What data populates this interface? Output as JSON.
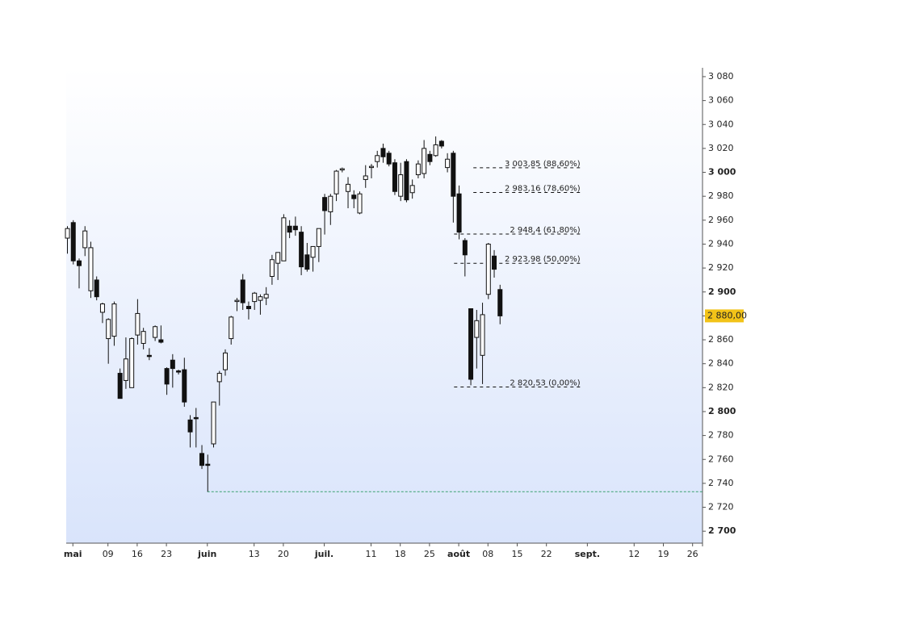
{
  "chart_data": {
    "type": "candlestick",
    "x": [
      0,
      1,
      2,
      3,
      4,
      5,
      6,
      7,
      8,
      9,
      10,
      11,
      12,
      13,
      14,
      15,
      16,
      17,
      18,
      19,
      20,
      21,
      22,
      23,
      24,
      25,
      26,
      27,
      28,
      29,
      30,
      31,
      32,
      33,
      34,
      35,
      36,
      37,
      38,
      39,
      40,
      41,
      42,
      43,
      44,
      45,
      46,
      47,
      48,
      49,
      50,
      51,
      52,
      53,
      54,
      55,
      56,
      57,
      58,
      59,
      60,
      61,
      62,
      63,
      64,
      65,
      66,
      67,
      68,
      69,
      70,
      71,
      72,
      73,
      74
    ],
    "open": [
      2945,
      2958,
      2926,
      2937,
      2901,
      2910,
      2883,
      2861,
      2863,
      2832,
      2826,
      2820,
      2864,
      2857,
      2847,
      2862,
      2860,
      2836,
      2843,
      2834,
      2835,
      2793,
      2795,
      2765,
      2756,
      2773,
      2825,
      2835,
      2861,
      2892,
      2910,
      2888,
      2892,
      2893,
      2895,
      2913,
      2924,
      2926,
      2955,
      2955,
      2950,
      2931,
      2929,
      2938,
      2979,
      2967,
      2982,
      3002,
      2984,
      2981,
      2966,
      2994,
      3004,
      3009,
      3020,
      3016,
      3008,
      2980,
      3009,
      2983,
      2998,
      2999,
      3015,
      3014,
      3026,
      3004,
      3016,
      2982,
      2943,
      2886,
      2862,
      2847,
      2898,
      2930,
      2902
    ],
    "high": [
      2955,
      2960,
      2928,
      2955,
      2942,
      2913,
      2891,
      2878,
      2892,
      2836,
      2862,
      2862,
      2894,
      2870,
      2853,
      2872,
      2872,
      2837,
      2848,
      2835,
      2845,
      2797,
      2803,
      2772,
      2764,
      2808,
      2834,
      2852,
      2880,
      2895,
      2915,
      2892,
      2900,
      2898,
      2904,
      2931,
      2933,
      2965,
      2960,
      2963,
      2955,
      2941,
      2938,
      2953,
      2982,
      2982,
      3002,
      3004,
      2996,
      2985,
      2984,
      3006,
      3007,
      3018,
      3024,
      3018,
      3011,
      3008,
      3011,
      2994,
      3010,
      3027,
      3018,
      3030,
      3027,
      3016,
      3018,
      2989,
      2945,
      2886,
      2885,
      2891,
      2941,
      2935,
      2906
    ],
    "low": [
      2932,
      2923,
      2903,
      2930,
      2895,
      2893,
      2874,
      2840,
      2855,
      2812,
      2819,
      2820,
      2856,
      2852,
      2843,
      2859,
      2857,
      2814,
      2820,
      2831,
      2804,
      2770,
      2770,
      2752,
      2733,
      2770,
      2805,
      2830,
      2856,
      2884,
      2885,
      2877,
      2885,
      2881,
      2889,
      2906,
      2910,
      2926,
      2945,
      2947,
      2914,
      2917,
      2917,
      2925,
      2948,
      2956,
      2976,
      3000,
      2970,
      2970,
      2965,
      2987,
      2995,
      3004,
      3008,
      3005,
      2981,
      2976,
      2975,
      2978,
      2995,
      2995,
      3006,
      3013,
      3020,
      3000,
      2958,
      2944,
      2913,
      2822,
      2836,
      2823,
      2894,
      2912,
      2873
    ],
    "close": [
      2953,
      2926,
      2922,
      2951,
      2937,
      2896,
      2890,
      2877,
      2890,
      2811,
      2844,
      2861,
      2882,
      2867,
      2846,
      2871,
      2858,
      2823,
      2836,
      2833,
      2808,
      2783,
      2794,
      2755,
      2755,
      2808,
      2832,
      2849,
      2879,
      2893,
      2891,
      2886,
      2899,
      2896,
      2898,
      2927,
      2933,
      2962,
      2950,
      2952,
      2921,
      2919,
      2938,
      2953,
      2968,
      2980,
      3001,
      3003,
      2990,
      2978,
      2982,
      2997,
      3005,
      3014,
      3013,
      3007,
      2984,
      2998,
      2977,
      2989,
      3007,
      3020,
      3009,
      3023,
      3022,
      3011,
      2980,
      2950,
      2931,
      2827,
      2876,
      2881,
      2940,
      2919,
      2880
    ],
    "up_color": "#ffffff",
    "down_color": "#111111",
    "xlim": [
      -0.14,
      108.7
    ],
    "xticks": [
      {
        "value": 1,
        "label": "mai"
      },
      {
        "value": 7,
        "label": "09"
      },
      {
        "value": 12,
        "label": "16"
      },
      {
        "value": 17,
        "label": "23"
      },
      {
        "value": 24,
        "label": "juin"
      },
      {
        "value": 32,
        "label": "13"
      },
      {
        "value": 37,
        "label": "20"
      },
      {
        "value": 44,
        "label": "juil."
      },
      {
        "value": 52,
        "label": "11"
      },
      {
        "value": 57,
        "label": "18"
      },
      {
        "value": 62,
        "label": "25"
      },
      {
        "value": 67,
        "label": "août"
      },
      {
        "value": 72,
        "label": "08"
      },
      {
        "value": 77,
        "label": "15"
      },
      {
        "value": 82,
        "label": "22"
      },
      {
        "value": 89,
        "label": "sept."
      },
      {
        "value": 97,
        "label": "12"
      },
      {
        "value": 102,
        "label": "19"
      },
      {
        "value": 107,
        "label": "26"
      }
    ],
    "ylim": [
      2690,
      3087.4
    ],
    "yticks": [
      {
        "value": 3080,
        "label": "3 080"
      },
      {
        "value": 3060,
        "label": "3 060"
      },
      {
        "value": 3040,
        "label": "3 040"
      },
      {
        "value": 3020,
        "label": "3 020"
      },
      {
        "value": 3000,
        "label": "3 000"
      },
      {
        "value": 2980,
        "label": "2 980"
      },
      {
        "value": 2960,
        "label": "2 960"
      },
      {
        "value": 2940,
        "label": "2 940"
      },
      {
        "value": 2920,
        "label": "2 920"
      },
      {
        "value": 2900,
        "label": "2 900"
      },
      {
        "value": 2880,
        "label": "2 880"
      },
      {
        "value": 2860,
        "label": "2 860"
      },
      {
        "value": 2840,
        "label": "2 840"
      },
      {
        "value": 2820,
        "label": "2 820"
      },
      {
        "value": 2800,
        "label": "2 800"
      },
      {
        "value": 2780,
        "label": "2 780"
      },
      {
        "value": 2760,
        "label": "2 760"
      },
      {
        "value": 2740,
        "label": "2 740"
      },
      {
        "value": 2720,
        "label": "2 720"
      },
      {
        "value": 2700,
        "label": "2 700"
      }
    ],
    "fib_levels": [
      {
        "value": 3003.85,
        "label": "3 003,85 (88,60%)",
        "start": 69.5
      },
      {
        "value": 2983.16,
        "label": "2 983,16 (78,60%)",
        "start": 69.5
      },
      {
        "value": 2948.4,
        "label": "2 948,4 (61,80%)",
        "start": 66.2
      },
      {
        "value": 2923.98,
        "label": "2 923,98 (50,00%)",
        "start": 66.2
      },
      {
        "value": 2820.53,
        "label": "2 820,53 (0,00%)",
        "start": 66.2
      }
    ],
    "fib_end": 87.8,
    "support_line": {
      "value": 2733,
      "start": 24,
      "color": "#3aa070"
    },
    "last_price": {
      "value": 2880,
      "label": "2 880,00",
      "color": "#f2c318"
    }
  }
}
